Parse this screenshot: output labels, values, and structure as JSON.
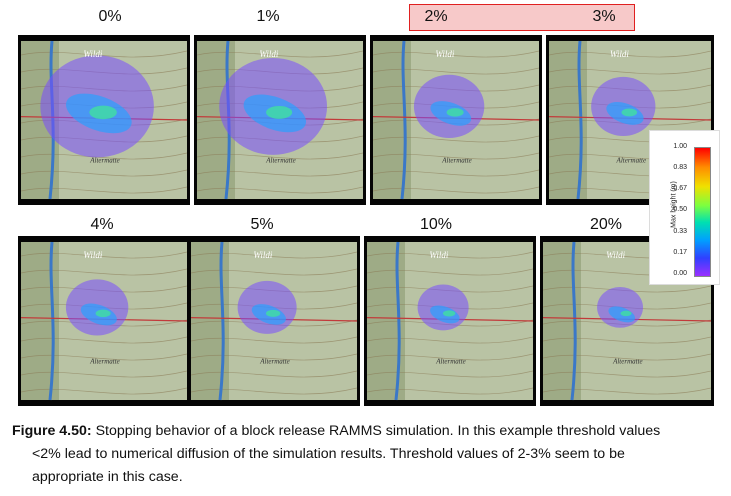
{
  "figure": {
    "panels": [
      {
        "label": "0%"
      },
      {
        "label": "1%"
      },
      {
        "label": "2%"
      },
      {
        "label": "3%"
      },
      {
        "label": "4%"
      },
      {
        "label": "5%"
      },
      {
        "label": "10%"
      },
      {
        "label": "20%"
      }
    ],
    "highlighted_labels": [
      "2%",
      "3%"
    ],
    "highlight_color": "#e02020",
    "map_text": {
      "place_top": "Wildi",
      "place_bottom": "Altermatte"
    },
    "colorbar": {
      "title": "Max height (m)",
      "ticks": [
        "1.00",
        "0.83",
        "0.67",
        "0.50",
        "0.33",
        "0.17",
        "0.00"
      ]
    }
  },
  "caption": {
    "figure_label": "Figure 4.50:",
    "line1": "Stopping behavior of a block release RAMMS simulation.  In this example threshold values",
    "line2": "<2% lead to numerical diffusion of the simulation results.  Threshold values of 2-3% seem to be",
    "line3": "appropriate in this case."
  }
}
